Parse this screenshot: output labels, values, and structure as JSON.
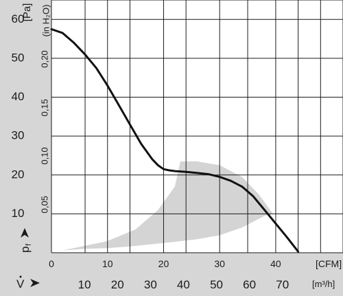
{
  "chart_data": {
    "type": "line",
    "title": "",
    "colors": {
      "curve": "#111111",
      "grid": "#1a1a1a",
      "band": "#d4d4d4",
      "panel": "#d6d6d6",
      "plot": "#ffffff"
    },
    "y_unit": "[Pa]",
    "y_secondary_unit": "(in H₂O)",
    "y_symbol_main": "p",
    "y_symbol_sub": "f",
    "x_unit": "[CFM]",
    "x_secondary_unit": "[m³/h]",
    "x_secondary_symbol": "V",
    "ylim": [
      0,
      65
    ],
    "xlim": [
      0,
      52
    ],
    "grid": true,
    "y_ticks": [
      10,
      20,
      30,
      40,
      50,
      60
    ],
    "y_tick_labels": [
      "10",
      "20",
      "30",
      "40",
      "50",
      "60"
    ],
    "y2_ticks": [
      12.4,
      24.9,
      37.3,
      49.8
    ],
    "y2_tick_labels": [
      "0,05",
      "0,10",
      "0,15",
      "0,20"
    ],
    "x_ticks": [
      0,
      10,
      20,
      30,
      40
    ],
    "x_tick_labels": [
      "0",
      "10",
      "20",
      "30",
      "40"
    ],
    "x2_ticks": [
      5.89,
      11.77,
      17.66,
      23.54,
      29.43,
      35.31,
      41.2
    ],
    "x2_tick_labels": [
      "10",
      "20",
      "30",
      "40",
      "50",
      "60",
      "70"
    ],
    "grid_x": [
      0,
      6,
      10,
      14,
      20,
      24,
      30,
      35,
      40,
      44,
      48,
      52
    ],
    "grid_y": [
      0,
      10,
      20,
      30,
      40,
      50,
      60,
      65
    ],
    "series": [
      {
        "x": [
          0,
          2,
          4,
          6,
          8,
          10,
          12,
          14,
          16,
          17,
          18,
          19,
          20,
          21,
          22,
          24,
          26,
          28,
          30,
          32,
          34,
          36,
          38,
          40,
          42,
          44
        ],
        "y": [
          57.5,
          56.5,
          54,
          51,
          47.5,
          43,
          38,
          33,
          28,
          26,
          24,
          22.5,
          21.5,
          21.2,
          21,
          20.8,
          20.5,
          20.2,
          19.5,
          18.5,
          17,
          14.5,
          11,
          7.5,
          4,
          0.3
        ]
      }
    ],
    "operating_band": {
      "x": [
        1,
        5,
        10,
        15,
        19,
        22,
        23,
        26,
        30,
        34,
        37,
        39.5,
        38,
        34,
        30,
        26,
        22,
        18,
        14,
        10,
        6,
        2,
        1
      ],
      "y": [
        0.3,
        1.5,
        3,
        6,
        11,
        17,
        23.5,
        23.5,
        22.5,
        19.5,
        15,
        10,
        9.5,
        6.5,
        4.5,
        3.5,
        2.8,
        2.2,
        1.6,
        1.2,
        1,
        0.6,
        0.3
      ]
    }
  }
}
